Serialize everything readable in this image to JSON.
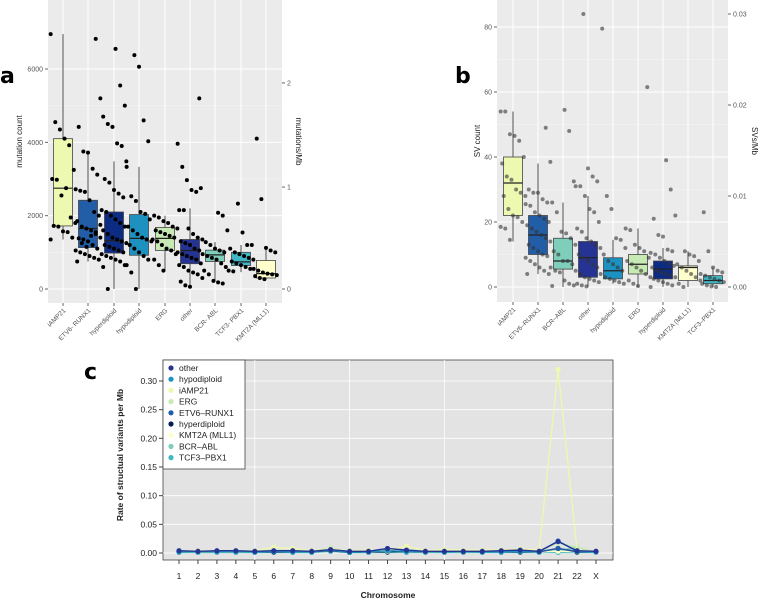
{
  "panel_labels": {
    "a": "a",
    "b": "b",
    "c": "c"
  },
  "chart_data": [
    {
      "id": "a",
      "type": "box",
      "ylabel": "mutation count",
      "ylabel_right": "mutations/Mb",
      "ylim": [
        -300,
        7500
      ],
      "yticks": [
        0,
        2000,
        4000,
        6000
      ],
      "yticks_right": {
        "labels": [
          "0",
          "1",
          "2"
        ],
        "values_in_left_units": [
          0,
          2780,
          5620
        ]
      },
      "categories": [
        "iAMP21",
        "ETV6- RUNX1",
        "hyperdiploid",
        "hypodiploid",
        "ERG",
        "other",
        "BCR- ABL",
        "TCF3- PBX1",
        "KMT2A (MLL1)"
      ],
      "colors": [
        "#edf8b1",
        "#225ea8",
        "#0c2c84",
        "#1d91c0",
        "#c7e9b4",
        "#253494",
        "#7fcdbb",
        "#41b6c4",
        "#ffffcc"
      ],
      "boxes": [
        {
          "q1": 1720,
          "median": 2750,
          "q3": 4100,
          "lo": 1350,
          "hi": 6950
        },
        {
          "q1": 1130,
          "median": 1650,
          "q3": 2420,
          "lo": 750,
          "hi": 3750
        },
        {
          "q1": 980,
          "median": 1320,
          "q3": 2100,
          "lo": 0,
          "hi": 3480
        },
        {
          "q1": 920,
          "median": 1380,
          "q3": 2030,
          "lo": 0,
          "hi": 3330
        },
        {
          "q1": 1050,
          "median": 1380,
          "q3": 1680,
          "lo": 500,
          "hi": 2000
        },
        {
          "q1": 690,
          "median": 1050,
          "q3": 1350,
          "lo": 60,
          "hi": 2200
        },
        {
          "q1": 750,
          "median": 930,
          "q3": 1060,
          "lo": 200,
          "hi": 1280
        },
        {
          "q1": 640,
          "median": 740,
          "q3": 1000,
          "lo": 460,
          "hi": 1200
        },
        {
          "q1": 300,
          "median": 420,
          "q3": 780,
          "lo": 270,
          "hi": 1100
        }
      ],
      "points": [
        [
          6950,
          4550,
          4350,
          4100,
          3920,
          3250,
          3000,
          2980,
          2550,
          2750,
          1950,
          1800,
          1720,
          1700,
          1570,
          1550,
          1400,
          1350
        ],
        [
          6820,
          5200,
          4420,
          3750,
          3720,
          3280,
          3120,
          2720,
          2680,
          2650,
          2420,
          2100,
          2000,
          1850,
          1700,
          1650,
          1600,
          1500,
          1400,
          1380,
          1350,
          1300,
          1200,
          1100,
          1050,
          1000,
          950,
          900,
          850,
          800,
          750,
          1250,
          1150,
          1450,
          1550,
          1750
        ],
        [
          6550,
          5550,
          5000,
          4700,
          4500,
          4420,
          3970,
          3900,
          3480,
          3000,
          2900,
          2700,
          2600,
          2500,
          2150,
          2100,
          2000,
          1900,
          1800,
          1700,
          1600,
          1500,
          1400,
          1350,
          1300,
          1250,
          1200,
          1150,
          1100,
          1050,
          1000,
          950,
          900,
          850,
          800,
          750,
          650,
          600,
          0
        ],
        [
          6380,
          6060,
          4600,
          4030,
          3330,
          2530,
          2400,
          2100,
          2050,
          1900,
          1700,
          1600,
          1500,
          1400,
          1350,
          1300,
          1200,
          1100,
          1000,
          900,
          800,
          650,
          450,
          0
        ],
        [
          2000,
          1950,
          1850,
          1800,
          1700,
          1650,
          1600,
          1550,
          1500,
          1450,
          1400,
          1350,
          1300,
          1200,
          1100,
          1050,
          950,
          800,
          650,
          500
        ],
        [
          5200,
          3960,
          3330,
          2970,
          2700,
          2650,
          2750,
          2150,
          2150,
          1650,
          1500,
          1400,
          1350,
          1300,
          1250,
          1200,
          1100,
          1050,
          1000,
          950,
          900,
          850,
          800,
          700,
          650,
          600,
          500,
          450,
          400,
          300,
          200,
          100,
          60
        ],
        [
          2080,
          2000,
          1600,
          1280,
          1200,
          1100,
          1050,
          1000,
          950,
          900,
          850,
          800,
          700,
          600,
          500,
          400,
          220,
          180,
          150
        ],
        [
          2330,
          1540,
          1200,
          1200,
          1100,
          1000,
          950,
          900,
          850,
          800,
          750,
          700,
          650,
          600,
          550,
          500,
          480
        ],
        [
          4100,
          2450,
          1120,
          1050,
          1000,
          550,
          500,
          450,
          420,
          400,
          380,
          350,
          300,
          270
        ]
      ]
    },
    {
      "id": "b",
      "type": "box",
      "ylabel": "SV count",
      "ylabel_right": "SVs/Mb",
      "ylim": [
        -4,
        88
      ],
      "yticks": [
        0,
        20,
        40,
        60,
        80
      ],
      "yticks_right": {
        "labels": [
          "0.00",
          "0.01",
          "0.02",
          "0.03"
        ],
        "values_in_left_units": [
          0,
          28,
          56,
          84
        ]
      },
      "categories": [
        "iAMP21",
        "ETV6–RUNX1",
        "BCR–ABL",
        "other",
        "hypodiploid",
        "ERG",
        "hyperdiploid",
        "KMT2A (MLL1)",
        "TCF3–PBX1"
      ],
      "colors": [
        "#edf8b1",
        "#225ea8",
        "#7fcdbb",
        "#253494",
        "#1d91c0",
        "#c7e9b4",
        "#0c2c84",
        "#ffffcc",
        "#41b6c4"
      ],
      "boxes": [
        {
          "q1": 22,
          "median": 32,
          "q3": 40,
          "lo": 14,
          "hi": 54
        },
        {
          "q1": 10,
          "median": 16,
          "q3": 22,
          "lo": 4,
          "hi": 38
        },
        {
          "q1": 5.5,
          "median": 8,
          "q3": 15,
          "lo": 0,
          "hi": 26
        },
        {
          "q1": 3,
          "median": 9,
          "q3": 14,
          "lo": 0,
          "hi": 28
        },
        {
          "q1": 2.5,
          "median": 5,
          "q3": 9,
          "lo": 1,
          "hi": 14.5
        },
        {
          "q1": 4,
          "median": 7,
          "q3": 10,
          "lo": 0,
          "hi": 18
        },
        {
          "q1": 2.5,
          "median": 5.5,
          "q3": 8,
          "lo": 0,
          "hi": 12
        },
        {
          "q1": 2,
          "median": 6,
          "q3": 6.5,
          "lo": 0,
          "hi": 11
        },
        {
          "q1": 1,
          "median": 2,
          "q3": 3.5,
          "lo": 0,
          "hi": 6
        }
      ],
      "points": [
        [
          54,
          54,
          47,
          46.5,
          45,
          40,
          38,
          34,
          33,
          30,
          29,
          28,
          28,
          24,
          22,
          21.5,
          20,
          18.5,
          18,
          14.5
        ],
        [
          49,
          38.5,
          30,
          29,
          29,
          27,
          26,
          25.5,
          25,
          23,
          22,
          21,
          20,
          19,
          18,
          17,
          16,
          15,
          14,
          13,
          12,
          11,
          10,
          9.5,
          9,
          8,
          7,
          6,
          5,
          4,
          4
        ],
        [
          54.5,
          48,
          32.5,
          26,
          23,
          17,
          16.5,
          15,
          13,
          11,
          10,
          8,
          8,
          7,
          6,
          5,
          4.5,
          2,
          1,
          0.5,
          0.3
        ],
        [
          84,
          36.5,
          34,
          32.5,
          31,
          31,
          28,
          24,
          23,
          20,
          18,
          17,
          15,
          14,
          13,
          12,
          10,
          9,
          8,
          7,
          6,
          5,
          4,
          3,
          2.5,
          2,
          1.5,
          1,
          0.5,
          0.2
        ],
        [
          79.5,
          28,
          24,
          15,
          14.5,
          12,
          10,
          8,
          7,
          6,
          5,
          4,
          3,
          2.5,
          2,
          1.5,
          1
        ],
        [
          61.5,
          18,
          17.5,
          13,
          12,
          11,
          9,
          8,
          7,
          6,
          5,
          4,
          3,
          2,
          1,
          0.3
        ],
        [
          39,
          30,
          22,
          21,
          16,
          15.5,
          11.5,
          11,
          10.5,
          10,
          9,
          8,
          7,
          6.5,
          6,
          5,
          4.5,
          4,
          3.5,
          3,
          2.5,
          2,
          1.5,
          1,
          0.5,
          0
        ],
        [
          11,
          10,
          9.5,
          8,
          7,
          6,
          5,
          4,
          3,
          2,
          1,
          0
        ],
        [
          23,
          11,
          6,
          5,
          4.5,
          4,
          3.5,
          3,
          2.5,
          2,
          1.5,
          1,
          0.5,
          0.2,
          0
        ]
      ]
    },
    {
      "id": "c",
      "type": "line",
      "xlabel": "Chromosome",
      "ylabel": "Rate of structual variants per Mb",
      "ylim": [
        -0.013,
        0.33
      ],
      "yticks": [
        "0.00",
        "0.05",
        "0.10",
        "0.15",
        "0.20",
        "0.25",
        "0.30"
      ],
      "x": [
        "1",
        "2",
        "3",
        "4",
        "5",
        "6",
        "7",
        "8",
        "9",
        "10",
        "11",
        "12",
        "13",
        "14",
        "15",
        "16",
        "17",
        "18",
        "19",
        "20",
        "21",
        "22",
        "X"
      ],
      "legend_position": "top-left",
      "series": [
        {
          "name": "other",
          "color": "#253494",
          "values": [
            0.004,
            0.003,
            0.004,
            0.004,
            0.003,
            0.004,
            0.004,
            0.003,
            0.006,
            0.003,
            0.003,
            0.008,
            0.005,
            0.003,
            0.003,
            0.003,
            0.003,
            0.004,
            0.005,
            0.003,
            0.02,
            0.004,
            0.003
          ]
        },
        {
          "name": "hypodiploid",
          "color": "#1d91c0",
          "values": [
            0.002,
            0.002,
            0.002,
            0.002,
            0.002,
            0.003,
            0.002,
            0.002,
            0.005,
            0.001,
            0.002,
            0.004,
            0.003,
            0.002,
            0.002,
            0.002,
            0.002,
            0.002,
            0.003,
            0.002,
            0.021,
            0.003,
            0.002
          ]
        },
        {
          "name": "iAMP21",
          "color": "#edf8b1",
          "values": [
            0.004,
            0.004,
            0.004,
            0.004,
            0.004,
            0.01,
            0.008,
            0.004,
            0.007,
            0.004,
            0.005,
            0.004,
            0.012,
            0.004,
            0.006,
            0.005,
            0.005,
            0.005,
            0.007,
            0.005,
            0.32,
            0.005,
            0.002
          ]
        },
        {
          "name": "ERG",
          "color": "#c7e9b4",
          "values": [
            0.002,
            0.002,
            0.002,
            0.002,
            0.003,
            0.005,
            0.004,
            0.003,
            0.009,
            0.003,
            0.004,
            0.003,
            0.006,
            0.003,
            0.004,
            0.003,
            0.003,
            0.003,
            0.004,
            0.003,
            0.018,
            0.01,
            0.002
          ]
        },
        {
          "name": "ETV6–RUNX1",
          "color": "#225ea8",
          "values": [
            0.003,
            0.002,
            0.003,
            0.003,
            0.002,
            0.003,
            0.003,
            0.003,
            0.005,
            0.002,
            0.003,
            0.005,
            0.004,
            0.003,
            0.002,
            0.003,
            0.003,
            0.003,
            0.003,
            0.002,
            0.008,
            0.003,
            0.002
          ]
        },
        {
          "name": "hyperdiploid",
          "color": "#081d58",
          "values": [
            0.002,
            0.002,
            0.002,
            0.002,
            0.002,
            0.002,
            0.002,
            0.002,
            0.004,
            0.001,
            0.002,
            0.002,
            0.003,
            0.002,
            0.002,
            0.002,
            0.002,
            0.002,
            0.002,
            0.002,
            0.008,
            0.002,
            0.002
          ]
        },
        {
          "name": "KMT2A (MLL1)",
          "color": "#ffffcc",
          "values": [
            0.002,
            0.002,
            0.002,
            0.002,
            0.002,
            0.003,
            0.002,
            0.002,
            0.004,
            0.002,
            0.002,
            0.002,
            0.003,
            0.002,
            0.002,
            0.002,
            0.002,
            0.002,
            0.002,
            0.002,
            0.003,
            0.002,
            0.002
          ]
        },
        {
          "name": "BCR–ABL",
          "color": "#7fcdbb",
          "values": [
            0.002,
            0.001,
            0.001,
            0.001,
            0.002,
            0.002,
            0.002,
            0.002,
            0.008,
            0.001,
            0.001,
            0.002,
            0.003,
            0.001,
            0.002,
            0.001,
            0.002,
            0.002,
            0.002,
            0.001,
            0.004,
            0.01,
            0.001
          ]
        },
        {
          "name": "TCF3–PBX1",
          "color": "#41b6c4",
          "values": [
            0.001,
            0.001,
            0.001,
            0.001,
            0.001,
            0.001,
            0.001,
            0.001,
            0.003,
            0.001,
            0.001,
            0.001,
            0.001,
            0.001,
            0.001,
            0.001,
            0.001,
            0.001,
            0.001,
            0.001,
            0.001,
            0.001,
            0.001
          ]
        }
      ]
    }
  ]
}
